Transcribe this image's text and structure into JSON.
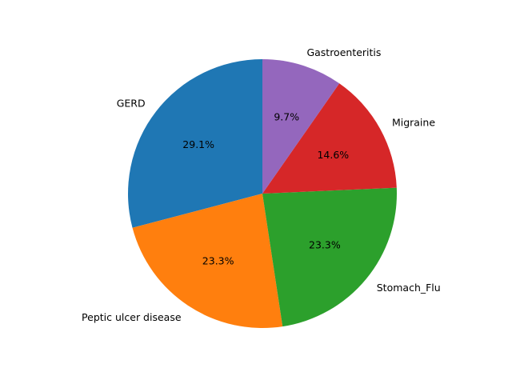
{
  "chart_data": {
    "type": "pie",
    "title": "",
    "start_angle_deg": 90,
    "direction": "counterclockwise",
    "slices": [
      {
        "label": "GERD",
        "percent_label": "29.1%",
        "value": 29.1,
        "color": "#1f77b4"
      },
      {
        "label": "Peptic ulcer disease",
        "percent_label": "23.3%",
        "value": 23.3,
        "color": "#ff7f0e"
      },
      {
        "label": "Stomach_Flu",
        "percent_label": "23.3%",
        "value": 23.3,
        "color": "#2ca02c"
      },
      {
        "label": "Migraine",
        "percent_label": "14.6%",
        "value": 14.6,
        "color": "#d62728"
      },
      {
        "label": "Gastroenteritis",
        "percent_label": "9.7%",
        "value": 9.7,
        "color": "#9467bd"
      }
    ]
  }
}
